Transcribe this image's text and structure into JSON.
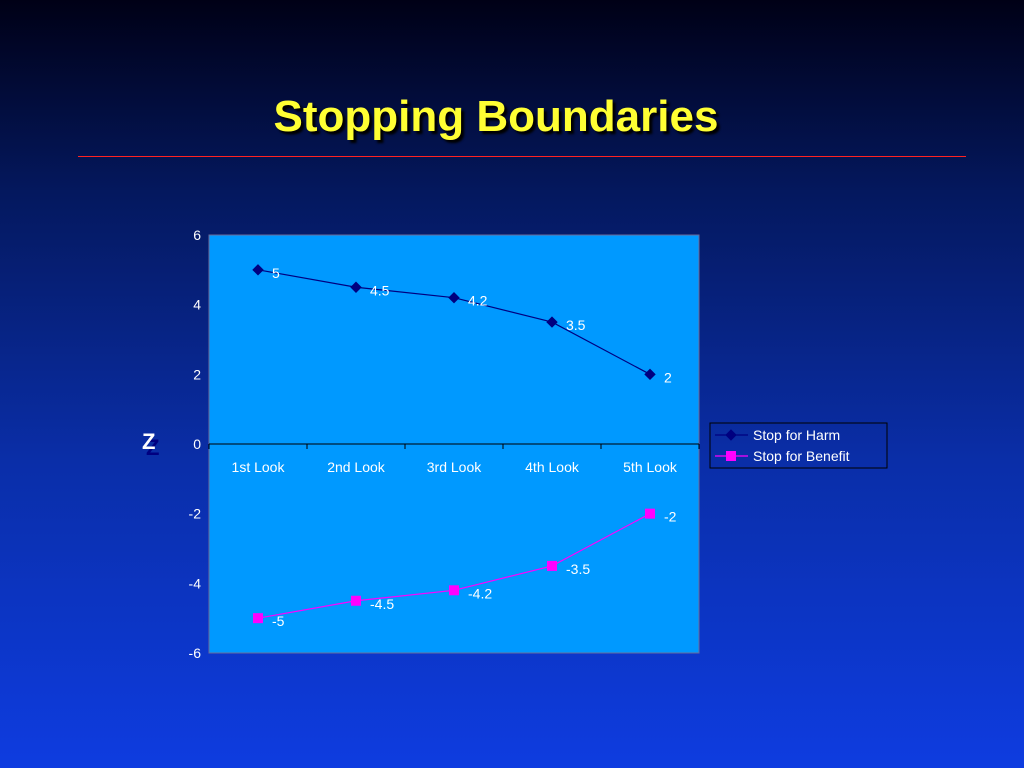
{
  "slide": {
    "title": "Stopping Boundaries"
  },
  "colors": {
    "plot_bg": "#0099ff",
    "harm": "#000080",
    "benefit": "#ff00ff",
    "title": "#ffff33",
    "rule": "#ff2222"
  },
  "chart_data": {
    "type": "line",
    "title": "",
    "xlabel": "",
    "ylabel": "Z",
    "categories": [
      "1st Look",
      "2nd Look",
      "3rd Look",
      "4th Look",
      "5th Look"
    ],
    "ylim": [
      -6,
      6
    ],
    "yticks": [
      6,
      4,
      2,
      0,
      -2,
      -4,
      -6
    ],
    "grid": false,
    "legend_position": "right",
    "series": [
      {
        "name": "Stop for Harm",
        "marker": "diamond",
        "color": "#000080",
        "values": [
          5,
          4.5,
          4.2,
          3.5,
          2
        ]
      },
      {
        "name": "Stop for Benefit",
        "marker": "square",
        "color": "#ff00ff",
        "values": [
          -5,
          -4.5,
          -4.2,
          -3.5,
          -2
        ]
      }
    ]
  }
}
